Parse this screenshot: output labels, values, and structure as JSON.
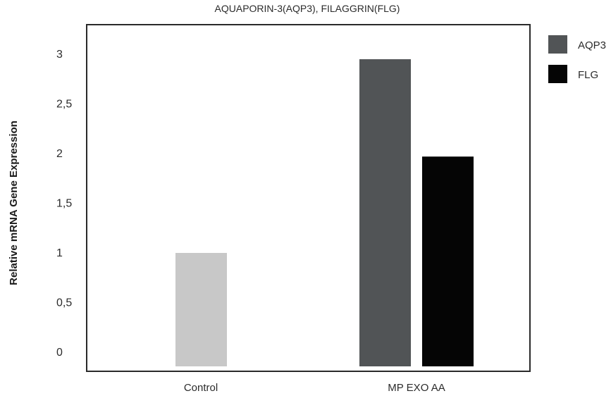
{
  "chart_data": {
    "type": "bar",
    "title": "AQUAPORIN-3(AQP3), FILAGGRIN(FLG)",
    "xlabel": "",
    "ylabel": "Relative mRNA Gene Expression",
    "ylim": [
      0,
      3
    ],
    "yticks": [
      "0",
      "0,5",
      "1",
      "1,5",
      "2",
      "2,5",
      "3"
    ],
    "categories": [
      "Control",
      "MP EXO AA"
    ],
    "bars": [
      {
        "category": "Control",
        "series": "",
        "value": 1.0,
        "color": "#c8c8c8"
      },
      {
        "category": "MP EXO AA",
        "series": "AQP3",
        "value": 2.95,
        "color": "#515456"
      },
      {
        "category": "MP EXO AA",
        "series": "FLG",
        "value": 1.97,
        "color": "#050505"
      }
    ],
    "legend": [
      {
        "name": "AQP3",
        "color": "#515456"
      },
      {
        "name": "FLG",
        "color": "#050505"
      }
    ],
    "legend_position": "top-right",
    "grid": false
  }
}
